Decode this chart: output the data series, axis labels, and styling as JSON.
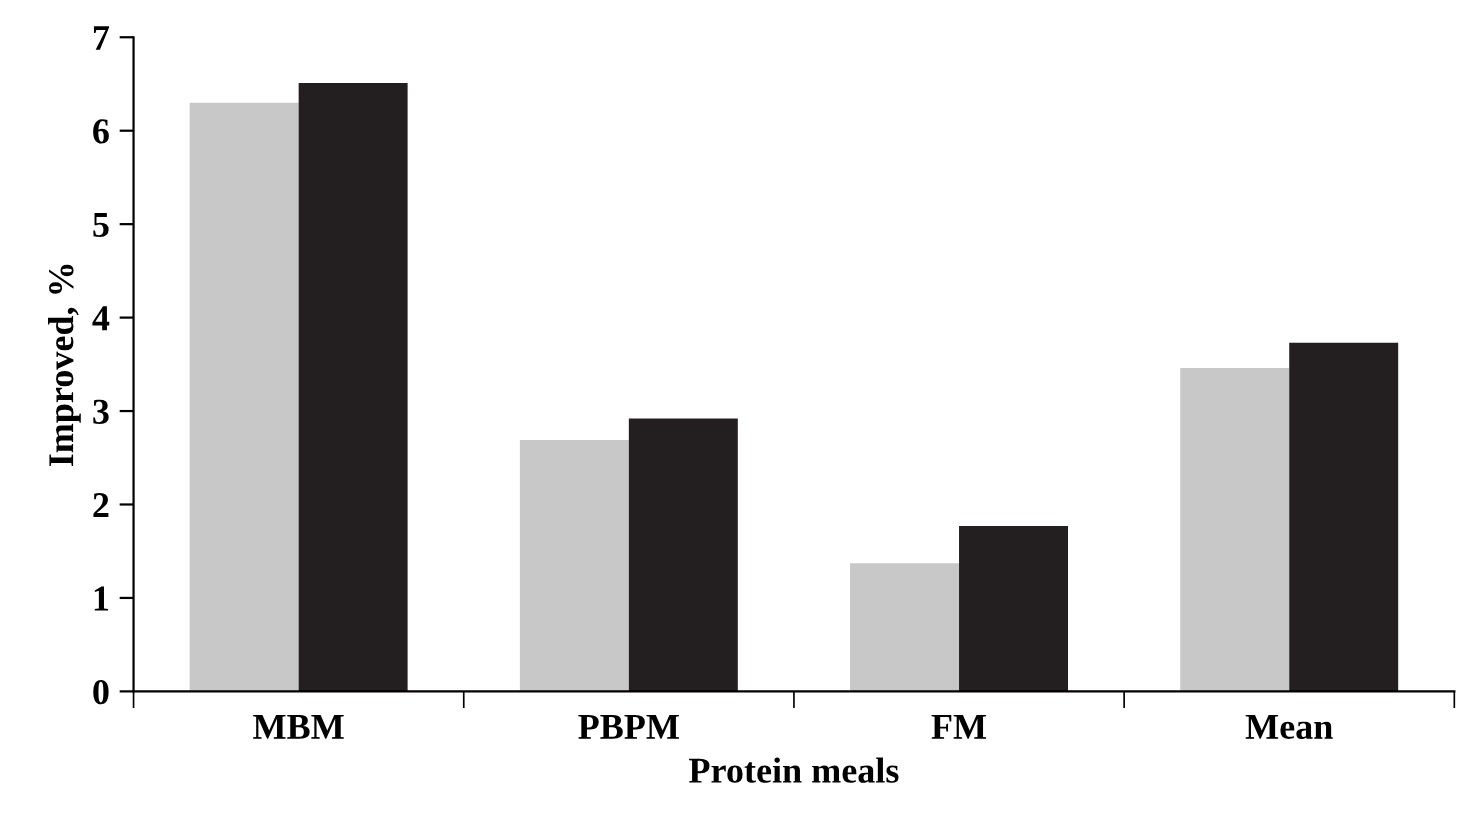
{
  "chart_data": {
    "type": "bar",
    "xlabel": "Protein meals",
    "ylabel": "Improved, %",
    "categories": [
      "MBM",
      "PBPM",
      "FM",
      "Mean"
    ],
    "series": [
      {
        "color": "#c8c8c8",
        "values": [
          6.3,
          2.69,
          1.37,
          3.46
        ]
      },
      {
        "color": "#231f20",
        "values": [
          6.51,
          2.92,
          1.77,
          3.73
        ]
      }
    ],
    "ylim": [
      0,
      7
    ],
    "yticks": [
      0,
      1,
      2,
      3,
      4,
      5,
      6,
      7
    ],
    "grid": false,
    "legend": false
  }
}
